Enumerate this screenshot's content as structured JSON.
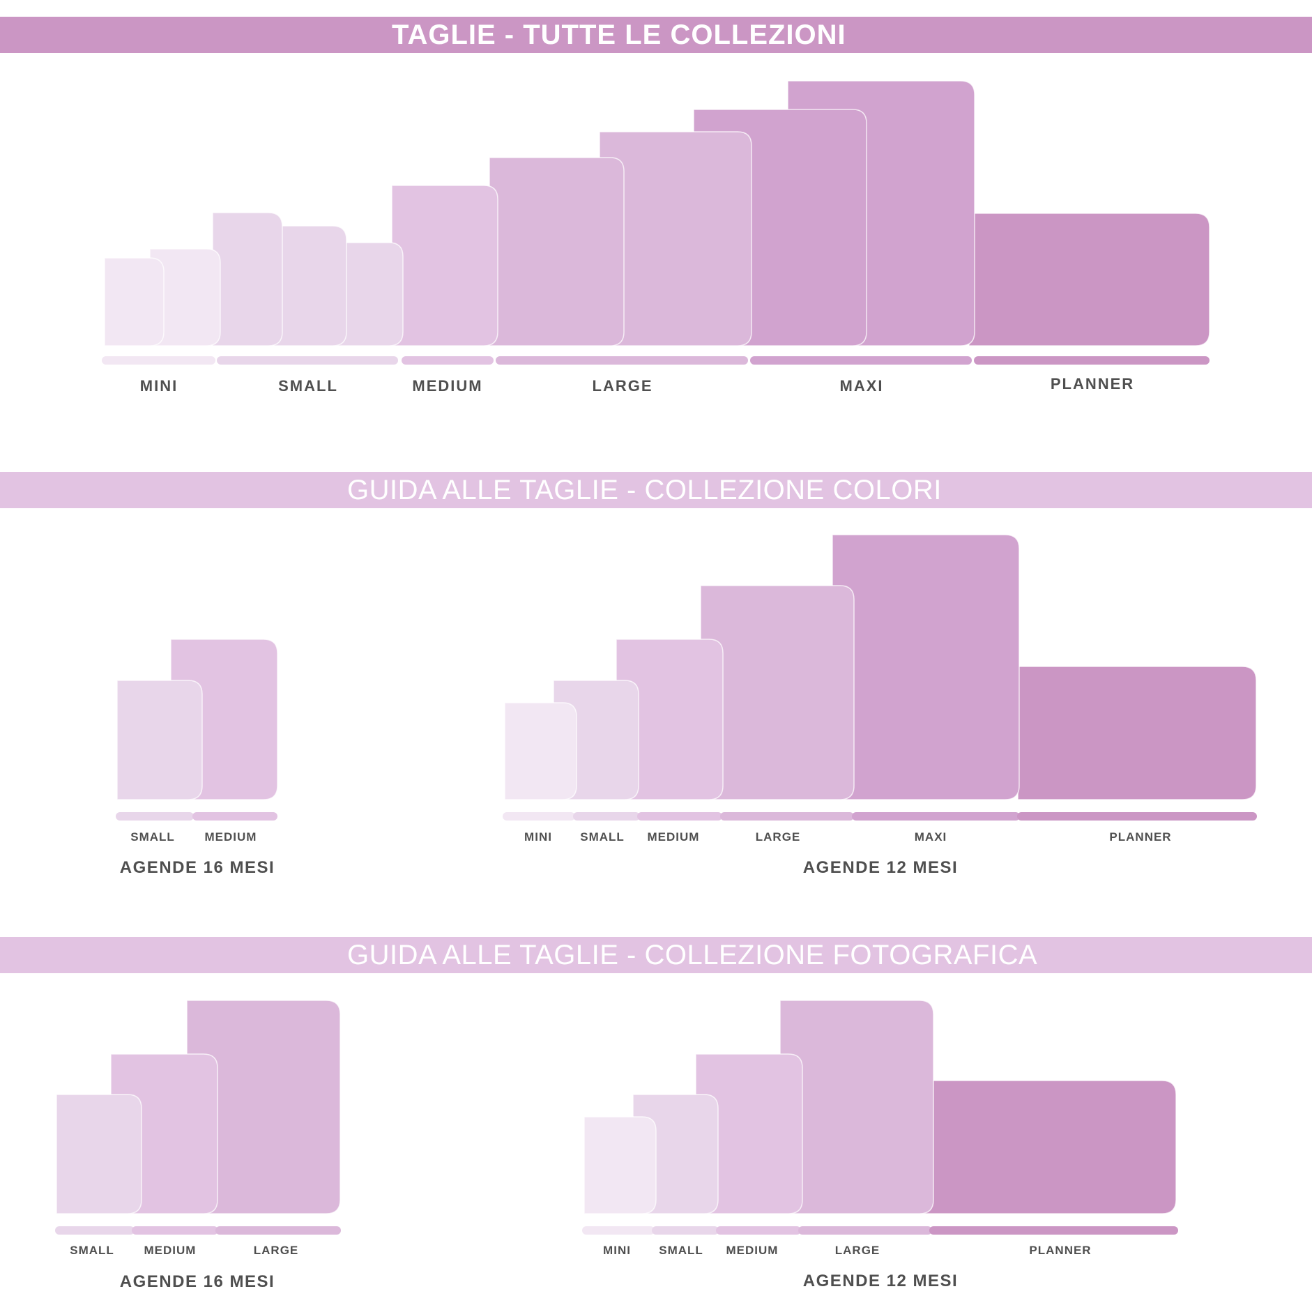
{
  "palette": {
    "banner_dark": "#cb96c4",
    "banner_light": "#e2c3e2",
    "shades": [
      "#f2e7f3",
      "#e8d6ea",
      "#e2c3e2",
      "#dbb8da",
      "#d1a3cf",
      "#cb96c4"
    ],
    "text": "#4f4f4f"
  },
  "sections": [
    {
      "title": "TAGLIE - TUTTE LE COLLEZIONI",
      "groups": [
        {
          "caption": "",
          "sizes": [
            "MINI",
            "SMALL",
            "MEDIUM",
            "LARGE",
            "MAXI",
            "PLANNER"
          ]
        }
      ]
    },
    {
      "title": "GUIDA ALLE TAGLIE - COLLEZIONE COLORI",
      "groups": [
        {
          "caption": "AGENDE 16 MESI",
          "sizes": [
            "SMALL",
            "MEDIUM"
          ]
        },
        {
          "caption": "AGENDE 12 MESI",
          "sizes": [
            "MINI",
            "SMALL",
            "MEDIUM",
            "LARGE",
            "MAXI",
            "PLANNER"
          ]
        }
      ]
    },
    {
      "title": "GUIDA ALLE TAGLIE - COLLEZIONE FOTOGRAFICA",
      "groups": [
        {
          "caption": "AGENDE 16 MESI",
          "sizes": [
            "SMALL",
            "MEDIUM",
            "LARGE"
          ]
        },
        {
          "caption": "AGENDE 12 MESI",
          "sizes": [
            "MINI",
            "SMALL",
            "MEDIUM",
            "LARGE",
            "PLANNER"
          ]
        }
      ]
    }
  ]
}
